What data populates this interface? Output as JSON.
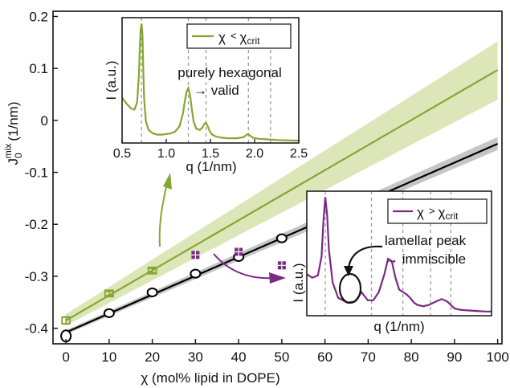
{
  "chart_data": [
    {
      "type": "scatter",
      "xlabel": "χ (mol% lipid in DOPE)",
      "ylabel_main": "J",
      "ylabel_sub": "0",
      "ylabel_sup": "mix",
      "ylabel_unit": "(1/nm)",
      "xlim": [
        -3,
        101
      ],
      "ylim": [
        -0.43,
        0.21
      ],
      "xticks": [
        0,
        10,
        20,
        30,
        40,
        50,
        60,
        70,
        80,
        90,
        100
      ],
      "yticks": [
        -0.4,
        -0.3,
        -0.2,
        -0.1,
        0,
        0.1,
        0.2
      ],
      "ytick_labels": [
        "-0.4",
        "-0.3",
        "-0.2",
        "-0.1",
        "0",
        "0.1",
        "0.2"
      ],
      "grid": false,
      "series": [
        {
          "color": "#86a631",
          "marker": "square",
          "points": [
            {
              "x": 0,
              "y": -0.385,
              "err": 0.007
            },
            {
              "x": 10,
              "y": -0.333,
              "err": 0.004
            },
            {
              "x": 20,
              "y": -0.289,
              "err": 0.004
            }
          ],
          "fit": {
            "x": [
              0,
              100
            ],
            "y": [
              -0.385,
              0.097
            ]
          },
          "band": {
            "x": [
              0,
              100
            ],
            "lower": [
              -0.395,
              0.04
            ],
            "upper": [
              -0.373,
              0.152
            ]
          }
        },
        {
          "color": "#000000",
          "marker": "circle",
          "points": [
            {
              "x": 0,
              "y": -0.415
            },
            {
              "x": 10,
              "y": -0.371
            },
            {
              "x": 20,
              "y": -0.331
            },
            {
              "x": 30,
              "y": -0.295
            },
            {
              "x": 40,
              "y": -0.263
            },
            {
              "x": 50,
              "y": -0.227
            }
          ],
          "fit": {
            "x": [
              0,
              100
            ],
            "y": [
              -0.408,
              -0.045
            ]
          },
          "band": {
            "x": [
              0,
              100
            ],
            "lower": [
              -0.412,
              -0.057
            ],
            "upper": [
              -0.404,
              -0.032
            ]
          }
        },
        {
          "color": "#7a2a82",
          "marker": "square-cross",
          "points": [
            {
              "x": 30,
              "y": -0.259
            },
            {
              "x": 40,
              "y": -0.253
            },
            {
              "x": 50,
              "y": -0.279
            }
          ]
        }
      ]
    },
    {
      "type": "line",
      "legend": "χ < χcrit",
      "legend_parts": {
        "chi": "χ",
        "op": "<",
        "base": "χ",
        "sub": "crit"
      },
      "color": "#86a631",
      "xlabel": "q (1/nm)",
      "ylabel": "I (a.u.)",
      "xlim": [
        0.5,
        2.5
      ],
      "ylim": [
        0,
        1.05
      ],
      "xticks": [
        0.5,
        1.0,
        1.5,
        2.0,
        2.5
      ],
      "xtick_labels": [
        "0.5",
        "1.0",
        "1.5",
        "2.0",
        "2.5"
      ],
      "dashed_x": [
        0.72,
        1.25,
        1.45,
        1.93,
        2.18
      ],
      "annotation": [
        "purely hexagonal",
        "→ valid"
      ],
      "curve": {
        "x": [
          0.5,
          0.55,
          0.6,
          0.64,
          0.67,
          0.69,
          0.7,
          0.71,
          0.72,
          0.73,
          0.74,
          0.75,
          0.77,
          0.8,
          0.85,
          0.9,
          0.95,
          1.0,
          1.05,
          1.1,
          1.15,
          1.19,
          1.21,
          1.23,
          1.25,
          1.27,
          1.29,
          1.31,
          1.34,
          1.38,
          1.41,
          1.43,
          1.45,
          1.47,
          1.49,
          1.52,
          1.56,
          1.62,
          1.7,
          1.8,
          1.88,
          1.91,
          1.93,
          1.95,
          1.98,
          2.05,
          2.15,
          2.25,
          2.35,
          2.45,
          2.5
        ],
        "y": [
          0.38,
          0.33,
          0.29,
          0.28,
          0.34,
          0.56,
          0.78,
          0.95,
          1.0,
          0.92,
          0.62,
          0.36,
          0.18,
          0.11,
          0.08,
          0.07,
          0.07,
          0.075,
          0.08,
          0.095,
          0.14,
          0.25,
          0.35,
          0.43,
          0.46,
          0.4,
          0.28,
          0.18,
          0.12,
          0.11,
          0.13,
          0.16,
          0.17,
          0.14,
          0.1,
          0.07,
          0.055,
          0.045,
          0.04,
          0.04,
          0.05,
          0.07,
          0.075,
          0.06,
          0.045,
          0.035,
          0.03,
          0.025,
          0.022,
          0.02,
          0.02
        ]
      }
    },
    {
      "type": "line",
      "legend": "χ > χcrit",
      "legend_parts": {
        "chi": "χ",
        "op": ">",
        "base": "χ",
        "sub": "crit"
      },
      "color": "#7a2a82",
      "xlabel": "q (1/nm)",
      "ylabel": "I (a.u.)",
      "xlim": [
        0,
        1
      ],
      "ylim": [
        0,
        1.05
      ],
      "dashed_x": [
        0.1,
        0.35,
        0.52,
        0.67,
        0.78
      ],
      "annotation": [
        "lamellar peak",
        "→ immiscible"
      ],
      "curve": {
        "x": [
          0.0,
          0.03,
          0.06,
          0.08,
          0.09,
          0.1,
          0.11,
          0.12,
          0.14,
          0.17,
          0.22,
          0.26,
          0.28,
          0.295,
          0.31,
          0.33,
          0.36,
          0.39,
          0.42,
          0.44,
          0.46,
          0.48,
          0.5,
          0.52,
          0.54,
          0.56,
          0.58,
          0.6,
          0.63,
          0.66,
          0.7,
          0.73,
          0.76,
          0.78,
          0.8,
          0.83,
          0.87,
          0.92,
          0.97,
          1.0
        ],
        "y": [
          0.35,
          0.32,
          0.34,
          0.5,
          0.8,
          1.0,
          0.85,
          0.55,
          0.28,
          0.15,
          0.11,
          0.12,
          0.16,
          0.2,
          0.17,
          0.13,
          0.13,
          0.2,
          0.35,
          0.48,
          0.46,
          0.32,
          0.22,
          0.2,
          0.18,
          0.15,
          0.11,
          0.09,
          0.08,
          0.09,
          0.12,
          0.14,
          0.12,
          0.09,
          0.06,
          0.05,
          0.045,
          0.04,
          0.035,
          0.035
        ]
      }
    }
  ]
}
